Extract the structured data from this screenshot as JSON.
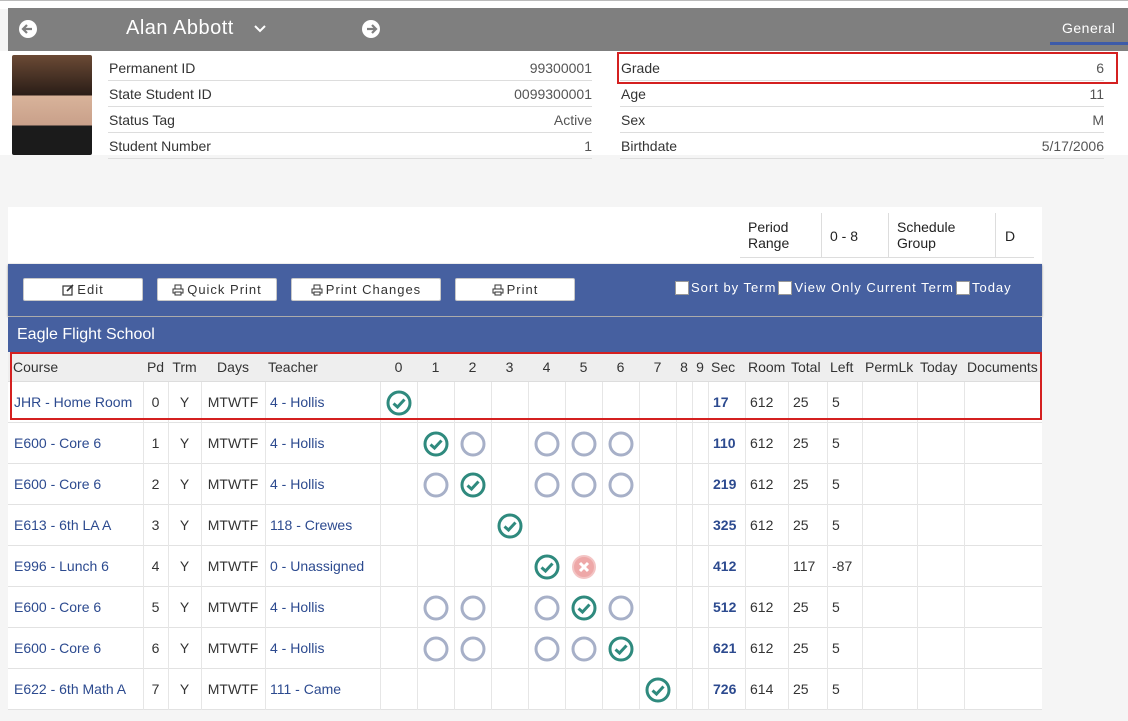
{
  "header": {
    "student_name": "Alan Abbott",
    "tab": "General"
  },
  "fields_left": [
    {
      "label": "Permanent ID",
      "value": "99300001"
    },
    {
      "label": "State Student ID",
      "value": "0099300001"
    },
    {
      "label": "Status Tag",
      "value": "Active"
    },
    {
      "label": "Student Number",
      "value": "1"
    }
  ],
  "fields_right": [
    {
      "label": "Grade",
      "value": "6"
    },
    {
      "label": "Age",
      "value": "11"
    },
    {
      "label": "Sex",
      "value": "M"
    },
    {
      "label": "Birthdate",
      "value": "5/17/2006"
    }
  ],
  "period_info": {
    "period_range_label": "Period Range",
    "period_range": "0 - 8",
    "schedule_group_label": "Schedule Group",
    "schedule_group": "D"
  },
  "toolbar": {
    "buttons": [
      "Edit",
      "Quick Print",
      "Print Changes",
      "Print"
    ],
    "checkboxes": [
      "Sort by Term",
      "View Only Current Term",
      "Today"
    ]
  },
  "school": "Eagle Flight School",
  "table": {
    "columns": [
      "Course",
      "Pd",
      "Trm",
      "Days",
      "Teacher",
      "0",
      "1",
      "2",
      "3",
      "4",
      "5",
      "6",
      "7",
      "8",
      "9",
      "Sec",
      "Room",
      "Total",
      "Left",
      "PermLk",
      "Today",
      "Documents"
    ],
    "rows": [
      {
        "course": "JHR - Home Room",
        "pd": "0",
        "trm": "Y",
        "days": "MTWTF",
        "teacher": "4 - Hollis",
        "sec": "17",
        "room": "612",
        "total": "25",
        "left": "5"
      },
      {
        "course": "E600 - Core 6",
        "pd": "1",
        "trm": "Y",
        "days": "MTWTF",
        "teacher": "4 - Hollis",
        "sec": "110",
        "room": "612",
        "total": "25",
        "left": "5"
      },
      {
        "course": "E600 - Core 6",
        "pd": "2",
        "trm": "Y",
        "days": "MTWTF",
        "teacher": "4 - Hollis",
        "sec": "219",
        "room": "612",
        "total": "25",
        "left": "5"
      },
      {
        "course": "E613 - 6th LA A",
        "pd": "3",
        "trm": "Y",
        "days": "MTWTF",
        "teacher": "118 - Crewes",
        "sec": "325",
        "room": "612",
        "total": "25",
        "left": "5"
      },
      {
        "course": "E996 - Lunch 6",
        "pd": "4",
        "trm": "Y",
        "days": "MTWTF",
        "teacher": "0 - Unassigned",
        "sec": "412",
        "room": null,
        "total": "117",
        "left": "-87"
      },
      {
        "course": "E600 - Core 6",
        "pd": "5",
        "trm": "Y",
        "days": "MTWTF",
        "teacher": "4 - Hollis",
        "sec": "512",
        "room": "612",
        "total": "25",
        "left": "5"
      },
      {
        "course": "E600 - Core 6",
        "pd": "6",
        "trm": "Y",
        "days": "MTWTF",
        "teacher": "4 - Hollis",
        "sec": "621",
        "room": "612",
        "total": "25",
        "left": "5"
      },
      {
        "course": "E622 - 6th Math A",
        "pd": "7",
        "trm": "Y",
        "days": "MTWTF",
        "teacher": "111 - Came",
        "sec": "726",
        "room": "614",
        "total": "25",
        "left": "5"
      }
    ]
  }
}
